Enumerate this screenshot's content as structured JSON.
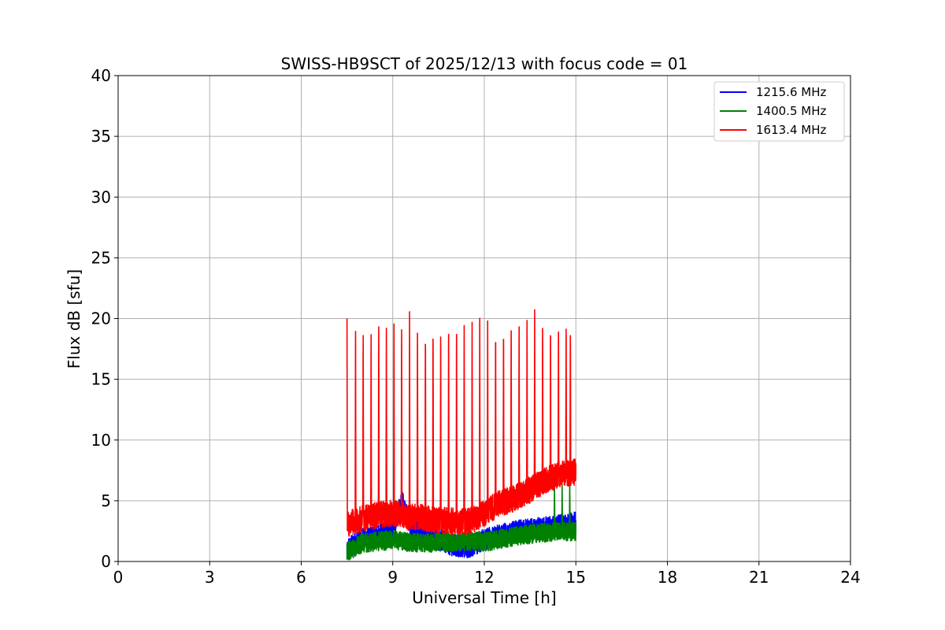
{
  "chart_data": {
    "type": "line",
    "title": "SWISS-HB9SCT of 2025/12/13 with focus code = 01",
    "xlabel": "Universal Time [h]",
    "ylabel": "Flux dB [sfu]",
    "xlim": [
      0,
      24
    ],
    "ylim": [
      0,
      40
    ],
    "xticks": [
      0,
      3,
      6,
      9,
      12,
      15,
      18,
      21,
      24
    ],
    "yticks": [
      0,
      5,
      10,
      15,
      20,
      25,
      30,
      35,
      40
    ],
    "grid": true,
    "legend_position": "top-right",
    "data_range_hours": [
      7.5,
      15.0
    ],
    "series": [
      {
        "name": "1215.6 MHz",
        "color": "#0000ff",
        "baseline": [
          [
            7.5,
            1.0
          ],
          [
            8.0,
            1.8
          ],
          [
            9.0,
            2.5
          ],
          [
            9.3,
            5.0
          ],
          [
            9.6,
            2.8
          ],
          [
            10.0,
            2.0
          ],
          [
            10.5,
            1.8
          ],
          [
            11.0,
            1.3
          ],
          [
            11.5,
            1.2
          ],
          [
            12.0,
            1.8
          ],
          [
            13.0,
            2.5
          ],
          [
            14.0,
            2.8
          ],
          [
            14.5,
            3.0
          ],
          [
            15.0,
            3.2
          ]
        ],
        "noise": 0.9,
        "spike_times": [],
        "spike_peak": 0
      },
      {
        "name": "1400.5 MHz",
        "color": "#008000",
        "baseline": [
          [
            7.5,
            0.8
          ],
          [
            8.0,
            1.5
          ],
          [
            9.0,
            1.8
          ],
          [
            9.5,
            1.6
          ],
          [
            10.0,
            1.5
          ],
          [
            10.5,
            1.6
          ],
          [
            11.0,
            1.6
          ],
          [
            11.5,
            1.7
          ],
          [
            12.0,
            1.6
          ],
          [
            13.0,
            2.1
          ],
          [
            14.0,
            2.4
          ],
          [
            14.5,
            2.5
          ],
          [
            15.0,
            2.5
          ]
        ],
        "noise": 0.8,
        "spike_times": [
          14.3,
          14.55,
          14.8
        ],
        "spike_peak": 6.5
      },
      {
        "name": "1613.4 MHz",
        "color": "#ff0000",
        "baseline": [
          [
            7.5,
            3.0
          ],
          [
            8.0,
            3.5
          ],
          [
            8.5,
            3.8
          ],
          [
            9.0,
            4.0
          ],
          [
            9.5,
            3.7
          ],
          [
            10.0,
            3.6
          ],
          [
            10.5,
            3.4
          ],
          [
            11.0,
            3.3
          ],
          [
            11.5,
            3.3
          ],
          [
            12.0,
            4.0
          ],
          [
            12.5,
            4.8
          ],
          [
            13.0,
            5.2
          ],
          [
            13.5,
            5.9
          ],
          [
            14.0,
            6.7
          ],
          [
            14.5,
            7.2
          ],
          [
            15.0,
            7.4
          ]
        ],
        "noise": 1.1,
        "spike_times": [
          7.5,
          7.78,
          8.03,
          8.29,
          8.54,
          8.79,
          9.04,
          9.29,
          9.55,
          9.81,
          10.07,
          10.32,
          10.57,
          10.83,
          11.09,
          11.34,
          11.6,
          11.85,
          12.11,
          12.37,
          12.63,
          12.88,
          13.14,
          13.4,
          13.65,
          13.91,
          14.17,
          14.43,
          14.68,
          14.82
        ],
        "spike_peak": 20.8
      }
    ]
  }
}
